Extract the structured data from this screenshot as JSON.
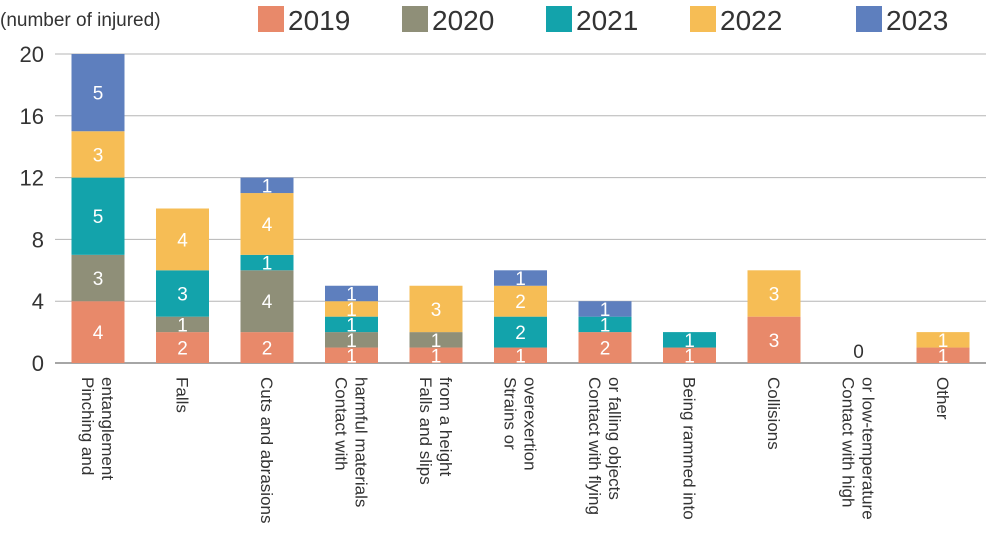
{
  "chart_data": {
    "type": "bar",
    "stacked": true,
    "ylabel": "(number of injured)",
    "ylim": [
      0,
      20
    ],
    "yticks": [
      0,
      4,
      8,
      12,
      16,
      20
    ],
    "grid": true,
    "legend_position": "top",
    "categories": [
      [
        "Pinching and",
        "entanglement"
      ],
      [
        "Falls"
      ],
      [
        "Cuts and abrasions"
      ],
      [
        "Contact with",
        "harmful materials"
      ],
      [
        "Falls and slips",
        "from a height"
      ],
      [
        "Strains or",
        "overexertion"
      ],
      [
        "Contact with flying",
        "or falling objects"
      ],
      [
        "Being rammed into"
      ],
      [
        "Collisions"
      ],
      [
        "Contact with high",
        "or low-temperature"
      ],
      [
        "Other"
      ]
    ],
    "series": [
      {
        "name": "2019",
        "color": "#e8896a",
        "values": [
          4,
          2,
          2,
          1,
          1,
          1,
          2,
          1,
          3,
          0,
          1
        ]
      },
      {
        "name": "2020",
        "color": "#8f8f78",
        "values": [
          3,
          1,
          4,
          1,
          1,
          0,
          0,
          0,
          0,
          0,
          0
        ]
      },
      {
        "name": "2021",
        "color": "#13a3ab",
        "values": [
          5,
          3,
          1,
          1,
          0,
          2,
          1,
          1,
          0,
          0,
          0
        ]
      },
      {
        "name": "2022",
        "color": "#f6bd55",
        "values": [
          3,
          4,
          4,
          1,
          3,
          2,
          0,
          0,
          3,
          0,
          1
        ]
      },
      {
        "name": "2023",
        "color": "#5e7fbe",
        "values": [
          5,
          0,
          1,
          1,
          0,
          1,
          1,
          0,
          0,
          0,
          0
        ]
      }
    ],
    "total_labels": [
      "",
      "",
      "",
      "",
      "",
      "",
      "",
      "",
      "",
      "0",
      ""
    ]
  }
}
